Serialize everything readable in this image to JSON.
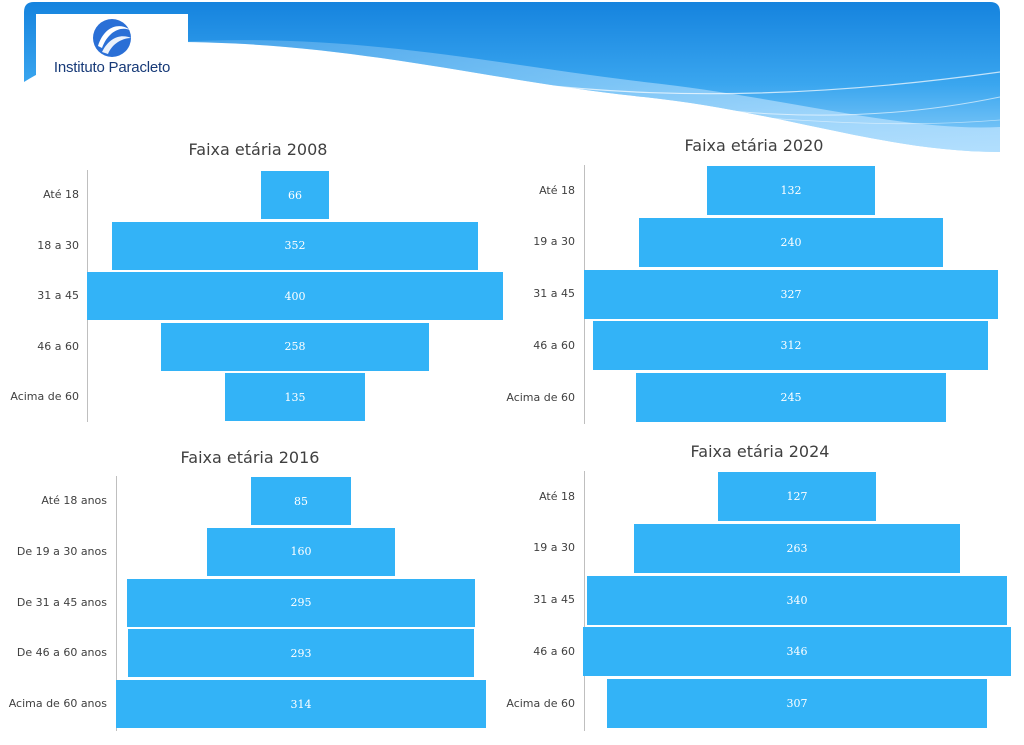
{
  "logo": {
    "text": "Instituto Paracleto"
  },
  "colors": {
    "bar": "#33b3f7",
    "banner_top": "#1a8ee4",
    "banner_light": "#7cc8f8",
    "logo_dark": "#173a78",
    "logo_blue": "#2a6fd6"
  },
  "chart_data": [
    {
      "type": "bar",
      "orientation": "horizontal",
      "title": "Faixa etária 2008",
      "categories": [
        "Até 18",
        "18 a 30",
        "31 a 45",
        "46 a 60",
        "Acima de 60"
      ],
      "values": [
        66,
        352,
        400,
        258,
        135
      ]
    },
    {
      "type": "bar",
      "orientation": "horizontal",
      "title": "Faixa etária 2020",
      "categories": [
        "Até 18",
        "19 a 30",
        "31 a 45",
        "46 a 60",
        "Acima de 60"
      ],
      "values": [
        132,
        240,
        327,
        312,
        245
      ]
    },
    {
      "type": "bar",
      "orientation": "horizontal",
      "title": "Faixa etária 2016",
      "categories": [
        "Até 18 anos",
        "De 19 a 30 anos",
        "De 31 a 45 anos",
        "De 46 a 60 anos",
        "Acima de 60 anos"
      ],
      "values": [
        85,
        160,
        295,
        293,
        314
      ]
    },
    {
      "type": "bar",
      "orientation": "horizontal",
      "title": "Faixa etária 2024",
      "categories": [
        "Até 18",
        "19 a 30",
        "31 a 45",
        "46 a 60",
        "Acima de 60"
      ],
      "values": [
        127,
        263,
        340,
        346,
        307
      ]
    }
  ]
}
